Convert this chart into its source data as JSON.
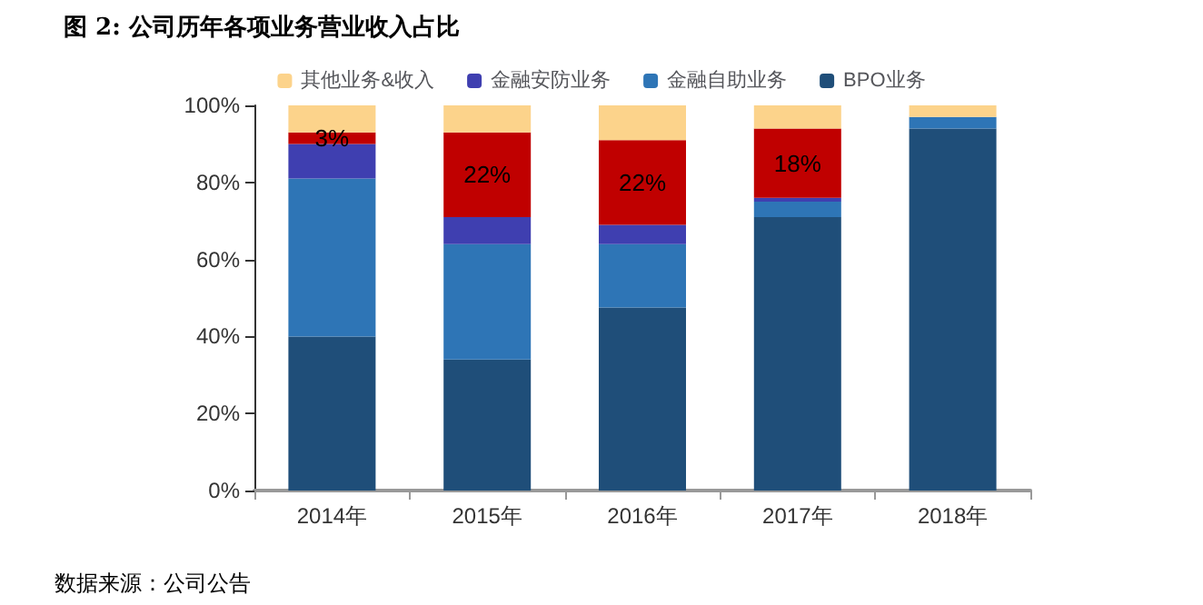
{
  "chart_data": {
    "type": "bar",
    "stacked": true,
    "title": "图 2: 公司历年各项业务营业收入占比",
    "annotations": [
      "数据来源：公司公告"
    ],
    "categories": [
      "2014年",
      "2015年",
      "2016年",
      "2017年",
      "2018年"
    ],
    "series": [
      {
        "name": "BPO业务",
        "color": "#1f4e79",
        "values": [
          40,
          34,
          47.5,
          71,
          94
        ]
      },
      {
        "name": "金融自助业务",
        "color": "#2e75b6",
        "values": [
          41,
          30,
          16.5,
          4,
          3
        ]
      },
      {
        "name": "金融安防业务",
        "color": "#3f3fb0",
        "values": [
          9,
          7,
          5,
          1,
          0
        ]
      },
      {
        "color": "#c00000",
        "values": [
          3,
          22,
          22,
          18,
          0
        ],
        "value_labels": [
          "3%",
          "22%",
          "22%",
          "18%",
          null
        ]
      },
      {
        "name": "其他业务&收入",
        "color": "#fcd38b",
        "values": [
          7,
          7,
          9,
          6,
          3
        ]
      }
    ],
    "ylim": [
      0,
      100
    ],
    "yticks": [
      {
        "value": 0,
        "label": "0%"
      },
      {
        "value": 20,
        "label": "20%"
      },
      {
        "value": 40,
        "label": "40%"
      },
      {
        "value": 60,
        "label": "60%"
      },
      {
        "value": 80,
        "label": "80%"
      },
      {
        "value": 100,
        "label": "100%"
      }
    ],
    "grid": false,
    "legend": "top"
  }
}
